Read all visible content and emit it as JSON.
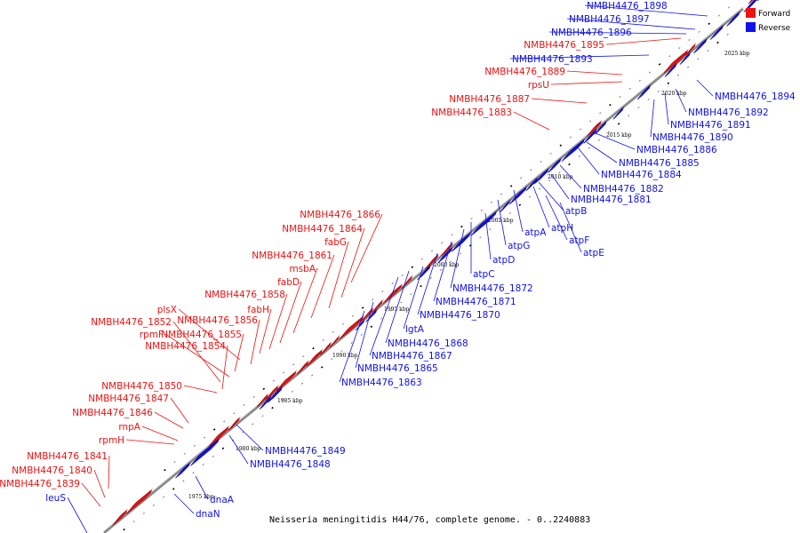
{
  "caption": "Neisseria meningitidis H44/76, complete genome. - 0..2240883",
  "legend": [
    {
      "label": "Forward",
      "color": "#ee1111"
    },
    {
      "label": "Reverse",
      "color": "#1111ee"
    }
  ],
  "colors": {
    "forward": "#ee1111",
    "reverse": "#1111ee",
    "axis": "#888888"
  },
  "ticks": [
    "1975 kbp",
    "1980 kbp",
    "1985 kbp",
    "1990 kbp",
    "1995 kbp",
    "2000 kbp",
    "2005 kbp",
    "2010 kbp",
    "2015 kbp",
    "2020 kbp",
    "2025 kbp"
  ],
  "forward_labels": [
    "NMBH4476_1895",
    "NMBH4476_1889",
    "rpsU",
    "NMBH4476_1887",
    "NMBH4476_1883",
    "NMBH4476_1866",
    "NMBH4476_1864",
    "fabG",
    "NMBH4476_1861",
    "msbA",
    "fabD",
    "NMBH4476_1858",
    "fabH",
    "plsX",
    "NMBH4476_1856",
    "NMBH4476_1852",
    "rpmF",
    "NMBH4476_1855",
    "NMBH4476_1854",
    "NMBH4476_1850",
    "NMBH4476_1847",
    "NMBH4476_1846",
    "rnpA",
    "rpmH",
    "NMBH4476_1841",
    "NMBH4476_1840",
    "NMBH4476_1839"
  ],
  "reverse_labels": [
    "NMBH4476_1898",
    "NMBH4476_1897",
    "NMBH4476_1896",
    "NMBH4476_1893",
    "NMBH4476_1894",
    "NMBH4476_1892",
    "NMBH4476_1891",
    "NMBH4476_1890",
    "NMBH4476_1886",
    "NMBH4476_1885",
    "NMBH4476_1884",
    "NMBH4476_1882",
    "NMBH4476_1881",
    "atpB",
    "atpH",
    "atpA",
    "atpF",
    "atpE",
    "atpG",
    "atpD",
    "atpC",
    "NMBH4476_1872",
    "NMBH4476_1871",
    "NMBH4476_1870",
    "lgtA",
    "NMBH4476_1868",
    "NMBH4476_1867",
    "NMBH4476_1865",
    "NMBH4476_1863",
    "NMBH4476_1849",
    "NMBH4476_1848",
    "dnaA",
    "dnaN",
    "leuS"
  ]
}
